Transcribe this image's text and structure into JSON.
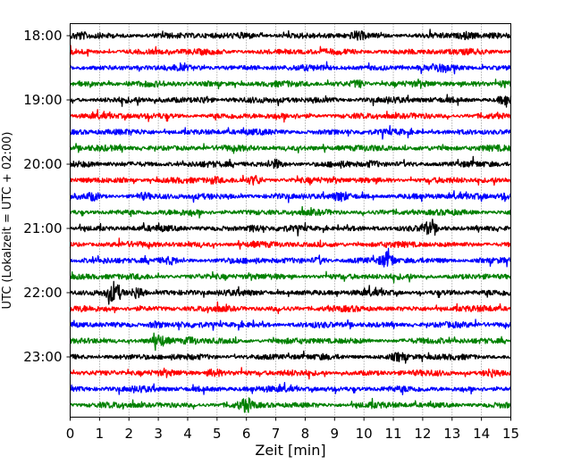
{
  "chart_data": {
    "type": "line",
    "xlabel": "Zeit  [min]",
    "ylabel": "UTC (Lokalzeit = UTC + 02:00)",
    "xlim": [
      0,
      15
    ],
    "x_ticks": [
      "0",
      "1",
      "2",
      "3",
      "4",
      "5",
      "6",
      "7",
      "8",
      "9",
      "10",
      "11",
      "12",
      "13",
      "14",
      "15"
    ],
    "y_tick_labels": [
      "18:00",
      "19:00",
      "20:00",
      "21:00",
      "22:00",
      "23:00"
    ],
    "grid": "x",
    "trace_colors": [
      "#000000",
      "#ff0000",
      "#0000ff",
      "#008000"
    ],
    "traces": [
      {
        "start": "18:00",
        "color": "#000000"
      },
      {
        "start": "18:15",
        "color": "#ff0000"
      },
      {
        "start": "18:30",
        "color": "#0000ff"
      },
      {
        "start": "18:45",
        "color": "#008000"
      },
      {
        "start": "19:00",
        "color": "#000000"
      },
      {
        "start": "19:15",
        "color": "#ff0000"
      },
      {
        "start": "19:30",
        "color": "#0000ff"
      },
      {
        "start": "19:45",
        "color": "#008000"
      },
      {
        "start": "20:00",
        "color": "#000000"
      },
      {
        "start": "20:15",
        "color": "#ff0000"
      },
      {
        "start": "20:30",
        "color": "#0000ff"
      },
      {
        "start": "20:45",
        "color": "#008000"
      },
      {
        "start": "21:00",
        "color": "#000000"
      },
      {
        "start": "21:15",
        "color": "#ff0000"
      },
      {
        "start": "21:30",
        "color": "#0000ff"
      },
      {
        "start": "21:45",
        "color": "#008000"
      },
      {
        "start": "22:00",
        "color": "#000000"
      },
      {
        "start": "22:15",
        "color": "#ff0000"
      },
      {
        "start": "22:30",
        "color": "#0000ff"
      },
      {
        "start": "22:45",
        "color": "#008000"
      },
      {
        "start": "23:00",
        "color": "#000000"
      },
      {
        "start": "23:15",
        "color": "#ff0000"
      },
      {
        "start": "23:30",
        "color": "#0000ff"
      },
      {
        "start": "23:45",
        "color": "#008000"
      }
    ]
  }
}
